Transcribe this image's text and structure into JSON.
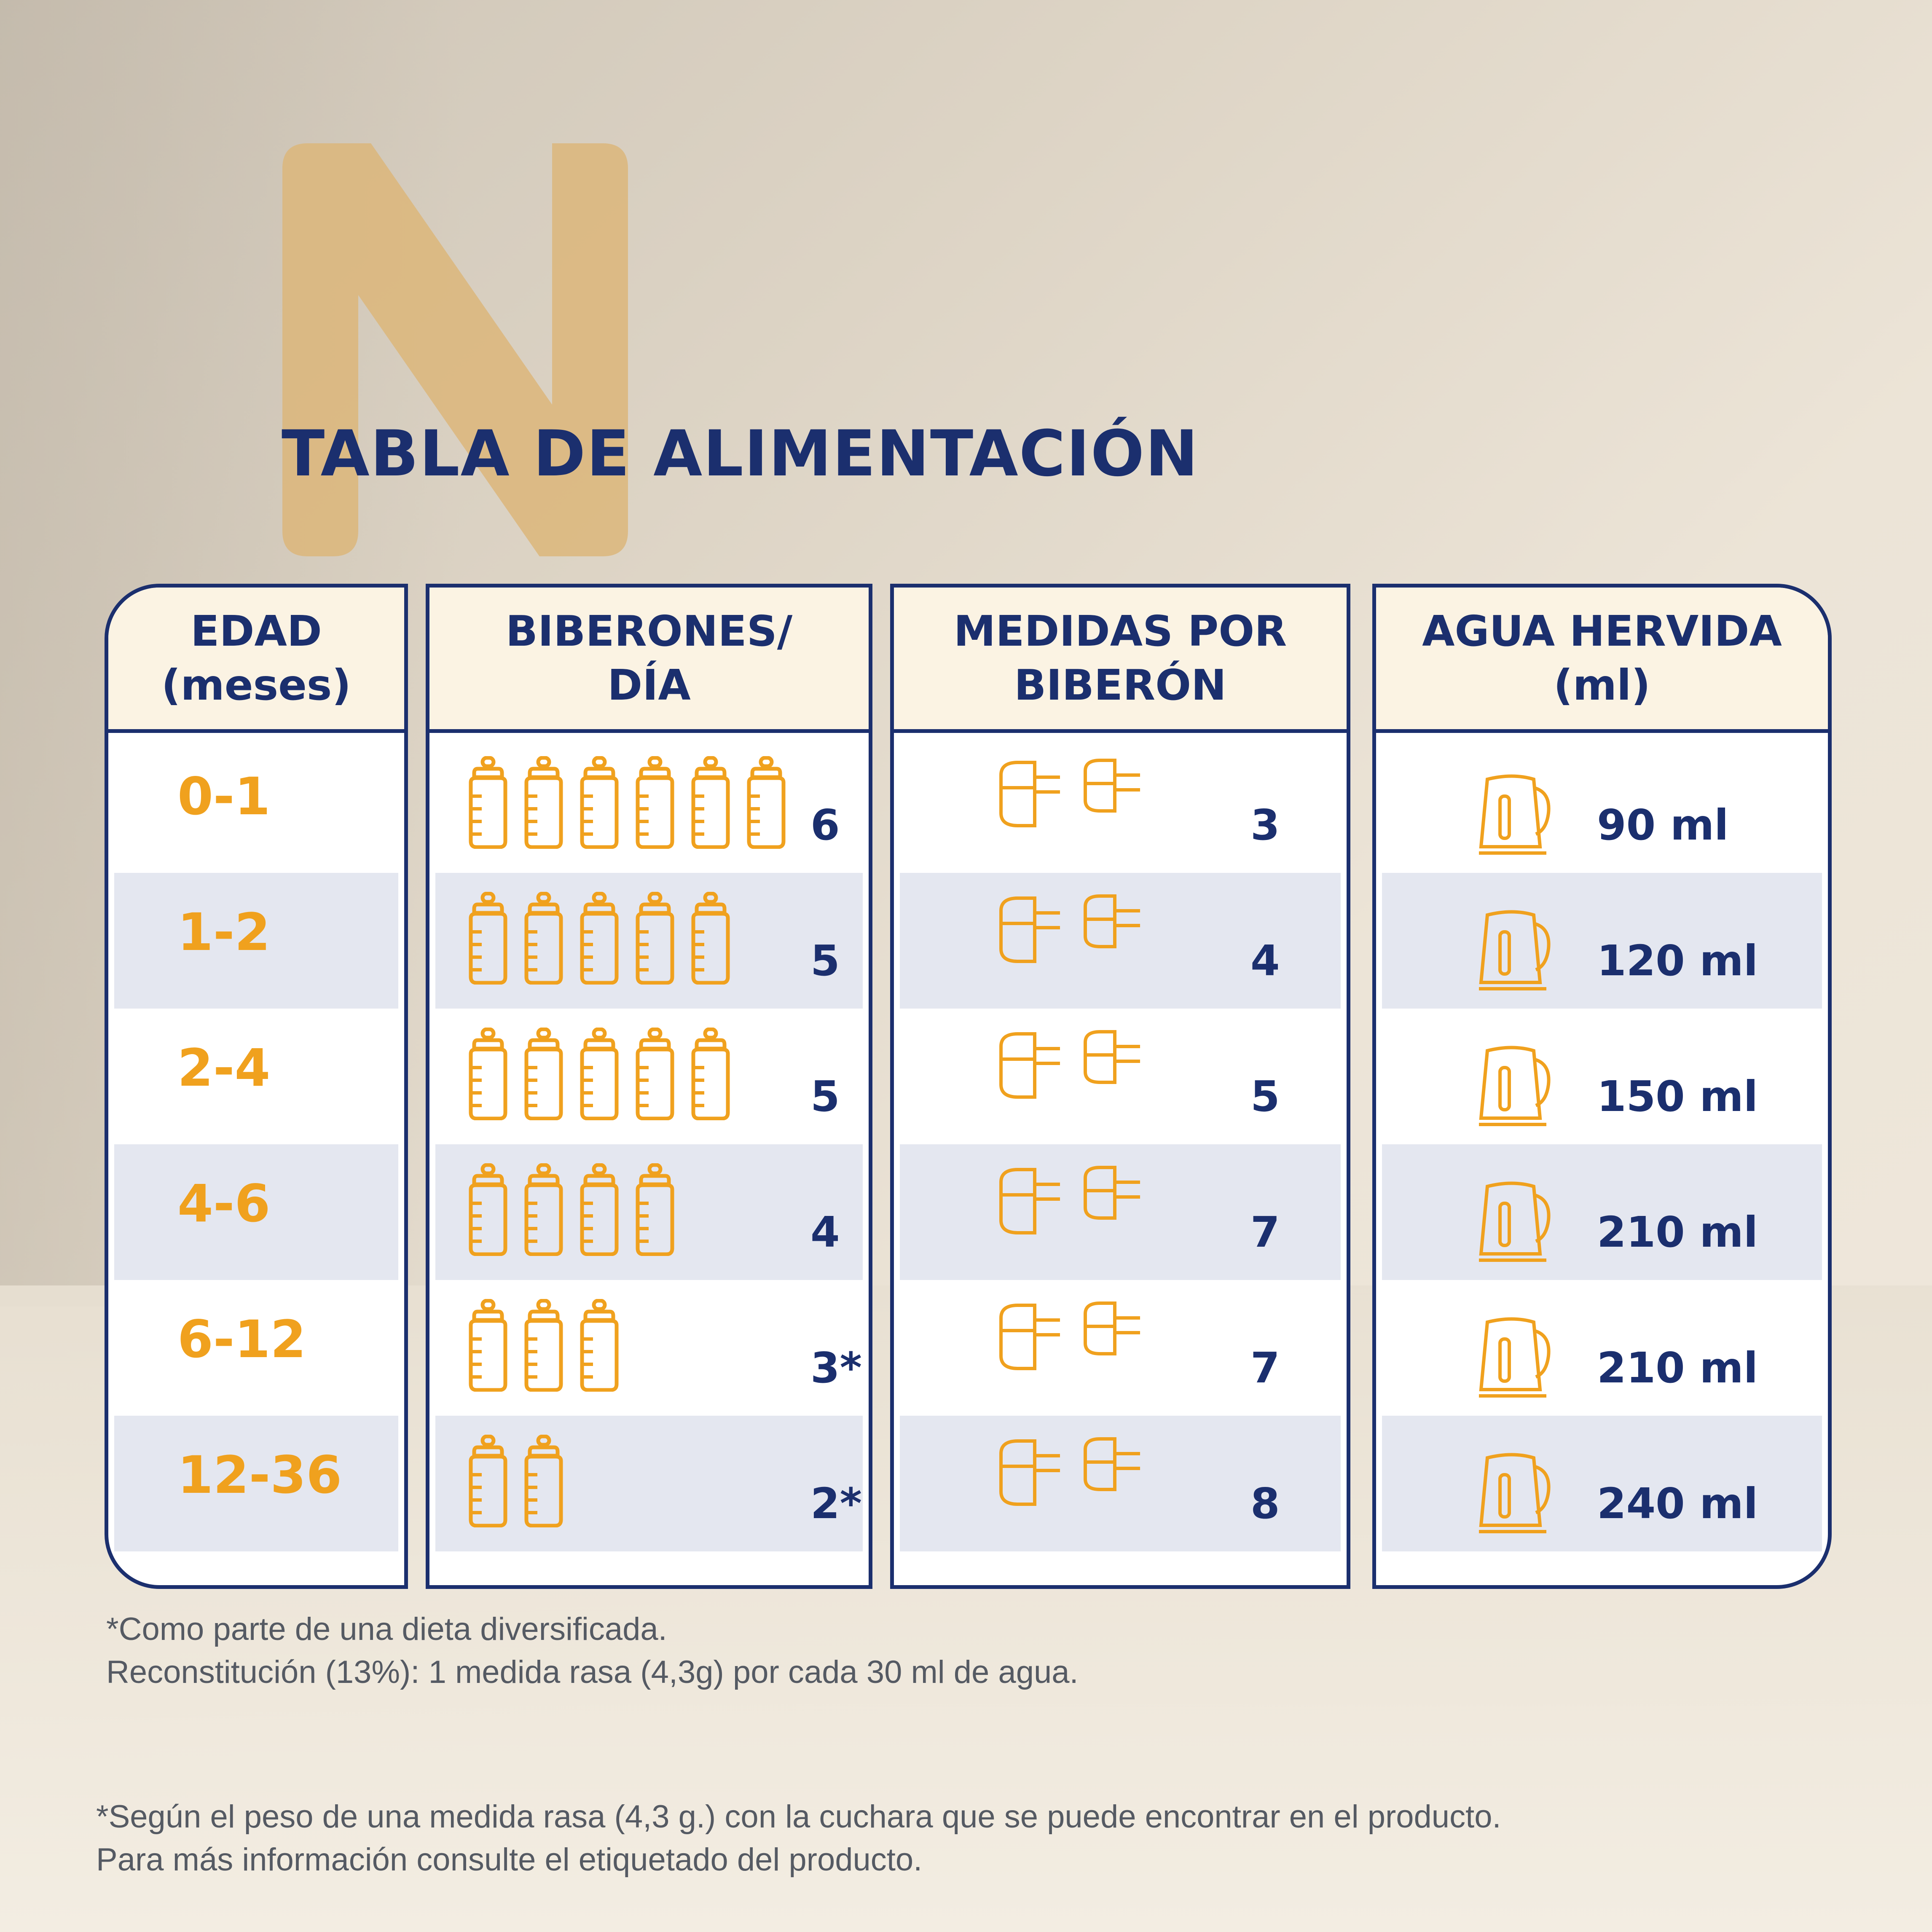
{
  "title": "TABLA DE ALIMENTACIÓN",
  "logo_letter": "N",
  "colors": {
    "navy": "#1b2f6e",
    "orange": "#f0a11e",
    "header_bg": "#fbf3e3",
    "row_shade": "#e4e7f0",
    "logo": "#dcb67a"
  },
  "headers": {
    "edad": [
      "EDAD",
      "(meses)"
    ],
    "biberones": [
      "BIBERONES/",
      "DÍA"
    ],
    "medidas": [
      "MEDIDAS POR",
      "BIBERÓN"
    ],
    "agua": [
      "AGUA HERVIDA",
      "(ml)"
    ]
  },
  "icons": {
    "bottle": "baby-bottle-icon",
    "scoop": "measuring-scoop-icon",
    "kettle": "kettle-icon"
  },
  "rows": [
    {
      "edad": "0-1",
      "bottles": 6,
      "biberones": "6",
      "medidas": "3",
      "agua": "90 ml"
    },
    {
      "edad": "1-2",
      "bottles": 5,
      "biberones": "5",
      "medidas": "4",
      "agua": "120 ml"
    },
    {
      "edad": "2-4",
      "bottles": 5,
      "biberones": "5",
      "medidas": "5",
      "agua": "150 ml"
    },
    {
      "edad": "4-6",
      "bottles": 4,
      "biberones": "4",
      "medidas": "7",
      "agua": "210 ml"
    },
    {
      "edad": "6-12",
      "bottles": 3,
      "biberones": "3*",
      "medidas": "7",
      "agua": "210 ml"
    },
    {
      "edad": "12-36",
      "bottles": 2,
      "biberones": "2*",
      "medidas": "8",
      "agua": "240 ml"
    }
  ],
  "notes": {
    "line1": "*Como parte de una dieta diversificada.",
    "line2": "Reconstitución (13%): 1 medida rasa (4,3g) por cada 30 ml de agua.",
    "line3": "*Según el peso de una medida rasa (4,3 g.) con la cuchara que se puede encontrar en el producto.",
    "line4": "Para más información consulte el etiquetado del producto."
  }
}
